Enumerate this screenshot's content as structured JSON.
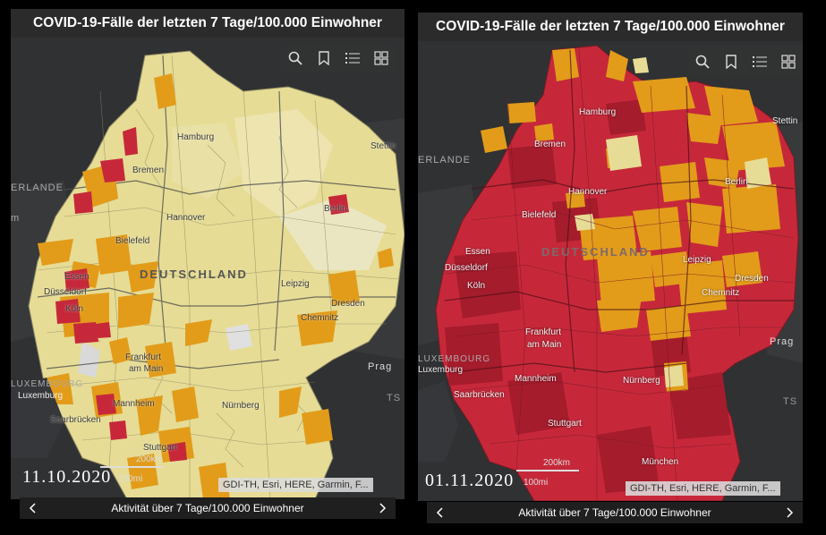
{
  "colors": {
    "low": "#e6dc95",
    "lightest": "#eae9ca",
    "medium": "#e29c1a",
    "high": "#c6283a",
    "very_high": "#a51c2c",
    "background": "#303133",
    "panel": "#2b2b2b"
  },
  "panels": [
    {
      "title": "COVID-19-Fälle der letzten 7 Tage/100.000 Einwohner",
      "date": "11.10.2020",
      "scale": {
        "km": "200km",
        "mi": "100mi"
      },
      "attribution": "GDI-TH, Esri, HERE, Garmin, F...",
      "legend": "Aktivität über 7 Tage/100.000 Einwohner",
      "country_label": "DEUTSCHLAND",
      "background_labels": {
        "nl": "ERLANDE",
        "partial": "m",
        "ts": "TS"
      },
      "cities": {
        "hamburg": "Hamburg",
        "stettin": "Stettin",
        "bremen": "Bremen",
        "berlin": "Berlin",
        "hannover": "Hannover",
        "bielefeld": "Bielefeld",
        "essen": "Essen",
        "duesseldorf": "Düsseldorf",
        "koeln": "Köln",
        "leipzig": "Leipzig",
        "dresden": "Dresden",
        "chemnitz": "Chemnitz",
        "frankfurt1": "Frankfurt",
        "frankfurt2": "am Main",
        "prag": "Prag",
        "luxembourg_country": "LUXEMBOURG",
        "luxemburg": "Luxemburg",
        "mannheim": "Mannheim",
        "nuernberg": "Nürnberg",
        "saarbruecken": "Saarbrücken",
        "stuttgart": "Stuttgart"
      },
      "tools": [
        "search-icon",
        "bookmark-icon",
        "legend-list-icon",
        "basemap-gallery-icon"
      ]
    },
    {
      "title": "COVID-19-Fälle der letzten 7 Tage/100.000 Einwohner",
      "date": "01.11.2020",
      "scale": {
        "km": "200km",
        "mi": "100mi"
      },
      "attribution": "GDI-TH, Esri, HERE, Garmin, F...",
      "legend": "Aktivität über 7 Tage/100.000 Einwohner",
      "country_label": "DEUTSCHLAND",
      "background_labels": {
        "nl": "ERLANDE",
        "ts": "TS"
      },
      "cities": {
        "hamburg": "Hamburg",
        "stettin": "Stettin",
        "bremen": "Bremen",
        "berlin": "Berlin",
        "hannover": "Hannover",
        "bielefeld": "Bielefeld",
        "essen": "Essen",
        "duesseldorf": "Düsseldorf",
        "koeln": "Köln",
        "leipzig": "Leipzig",
        "dresden": "Dresden",
        "chemnitz": "Chemnitz",
        "frankfurt1": "Frankfurt",
        "frankfurt2": "am Main",
        "prag": "Prag",
        "luxembourg_country": "LUXEMBOURG",
        "luxemburg": "Luxemburg",
        "mannheim": "Mannheim",
        "nuernberg": "Nürnberg",
        "saarbruecken": "Saarbrücken",
        "stuttgart": "Stuttgart",
        "muenchen": "München"
      },
      "tools": [
        "search-icon",
        "bookmark-icon",
        "legend-list-icon",
        "basemap-gallery-icon"
      ]
    }
  ]
}
